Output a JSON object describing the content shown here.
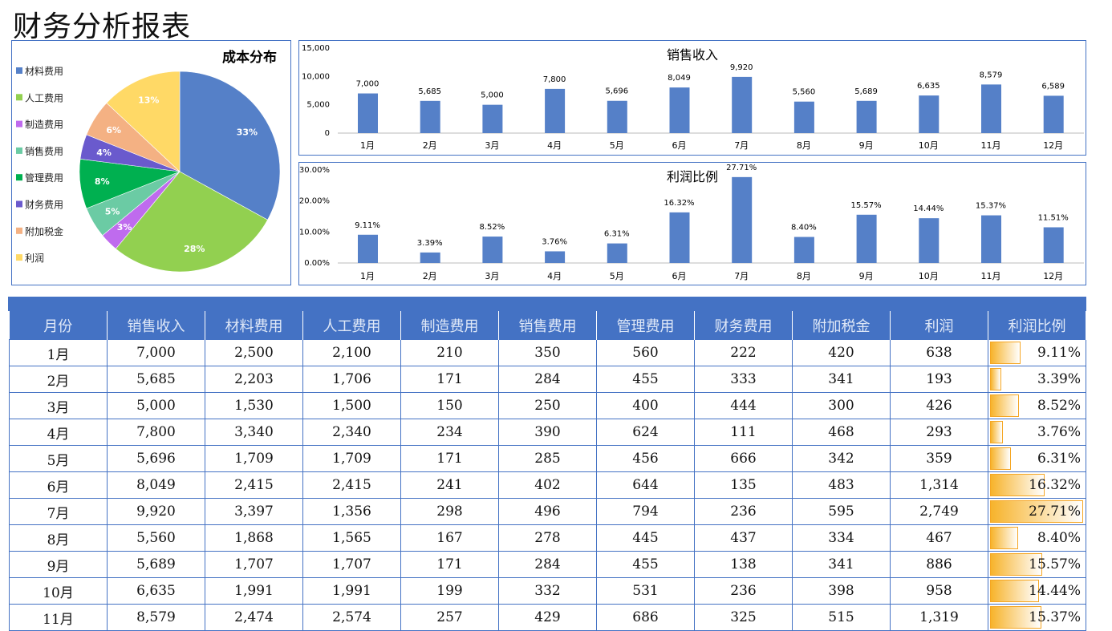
{
  "title": "财务分析报表",
  "colors": {
    "accent": "#4472C4",
    "bar": "#5580C8"
  },
  "pie": {
    "title": "成本分布",
    "slices": [
      {
        "label": "材料费用",
        "pct": 33,
        "color": "#5580C8"
      },
      {
        "label": "人工费用",
        "pct": 28,
        "color": "#92D050"
      },
      {
        "label": "制造费用",
        "pct": 3,
        "color": "#BF6BEE"
      },
      {
        "label": "销售费用",
        "pct": 5,
        "color": "#6BCBA4"
      },
      {
        "label": "管理费用",
        "pct": 8,
        "color": "#00B050"
      },
      {
        "label": "财务费用",
        "pct": 4,
        "color": "#6A5ACD"
      },
      {
        "label": "附加税金",
        "pct": 6,
        "color": "#F4B183"
      },
      {
        "label": "利润",
        "pct": 13,
        "color": "#FFD966"
      }
    ]
  },
  "chart_data": [
    {
      "type": "bar",
      "title": "销售收入",
      "categories": [
        "1月",
        "2月",
        "3月",
        "4月",
        "5月",
        "6月",
        "7月",
        "8月",
        "9月",
        "10月",
        "11月",
        "12月"
      ],
      "values": [
        7000,
        5685,
        5000,
        7800,
        5696,
        8049,
        9920,
        5560,
        5689,
        6635,
        8579,
        6589
      ],
      "value_labels": [
        "7,000",
        "5,685",
        "5,000",
        "7,800",
        "5,696",
        "8,049",
        "9,920",
        "5,560",
        "5,689",
        "6,635",
        "8,579",
        "6,589"
      ],
      "yticks": [
        "0",
        "5,000",
        "10,000",
        "15,000"
      ],
      "ylim": [
        0,
        15000
      ]
    },
    {
      "type": "bar",
      "title": "利润比例",
      "categories": [
        "1月",
        "2月",
        "3月",
        "4月",
        "5月",
        "6月",
        "7月",
        "8月",
        "9月",
        "10月",
        "11月",
        "12月"
      ],
      "values": [
        9.11,
        3.39,
        8.52,
        3.76,
        6.31,
        16.32,
        27.71,
        8.4,
        15.57,
        14.44,
        15.37,
        11.51
      ],
      "value_labels": [
        "9.11%",
        "3.39%",
        "8.52%",
        "3.76%",
        "6.31%",
        "16.32%",
        "27.71%",
        "8.40%",
        "15.57%",
        "14.44%",
        "15.37%",
        "11.51%"
      ],
      "yticks": [
        "0.00%",
        "10.00%",
        "20.00%",
        "30.00%"
      ],
      "ylim": [
        0,
        30
      ]
    }
  ],
  "table": {
    "headers": [
      "月份",
      "销售收入",
      "材料费用",
      "人工费用",
      "制造费用",
      "销售费用",
      "管理费用",
      "财务费用",
      "附加税金",
      "利润",
      "利润比例"
    ],
    "rows": [
      [
        "1月",
        "7,000",
        "2,500",
        "2,100",
        "210",
        "350",
        "560",
        "222",
        "420",
        "638",
        "9.11%"
      ],
      [
        "2月",
        "5,685",
        "2,203",
        "1,706",
        "171",
        "284",
        "455",
        "333",
        "341",
        "193",
        "3.39%"
      ],
      [
        "3月",
        "5,000",
        "1,530",
        "1,500",
        "150",
        "250",
        "400",
        "444",
        "300",
        "426",
        "8.52%"
      ],
      [
        "4月",
        "7,800",
        "3,340",
        "2,340",
        "234",
        "390",
        "624",
        "111",
        "468",
        "293",
        "3.76%"
      ],
      [
        "5月",
        "5,696",
        "1,709",
        "1,709",
        "171",
        "285",
        "456",
        "666",
        "342",
        "359",
        "6.31%"
      ],
      [
        "6月",
        "8,049",
        "2,415",
        "2,415",
        "241",
        "402",
        "644",
        "135",
        "483",
        "1,314",
        "16.32%"
      ],
      [
        "7月",
        "9,920",
        "3,397",
        "1,356",
        "298",
        "496",
        "794",
        "236",
        "595",
        "2,749",
        "27.71%"
      ],
      [
        "8月",
        "5,560",
        "1,868",
        "1,565",
        "167",
        "278",
        "445",
        "437",
        "334",
        "467",
        "8.40%"
      ],
      [
        "9月",
        "5,689",
        "1,707",
        "1,707",
        "171",
        "284",
        "455",
        "138",
        "341",
        "886",
        "15.57%"
      ],
      [
        "10月",
        "6,635",
        "1,991",
        "1,991",
        "199",
        "332",
        "531",
        "236",
        "398",
        "958",
        "14.44%"
      ],
      [
        "11月",
        "8,579",
        "2,474",
        "2,574",
        "257",
        "429",
        "686",
        "325",
        "515",
        "1,319",
        "15.37%"
      ]
    ]
  }
}
